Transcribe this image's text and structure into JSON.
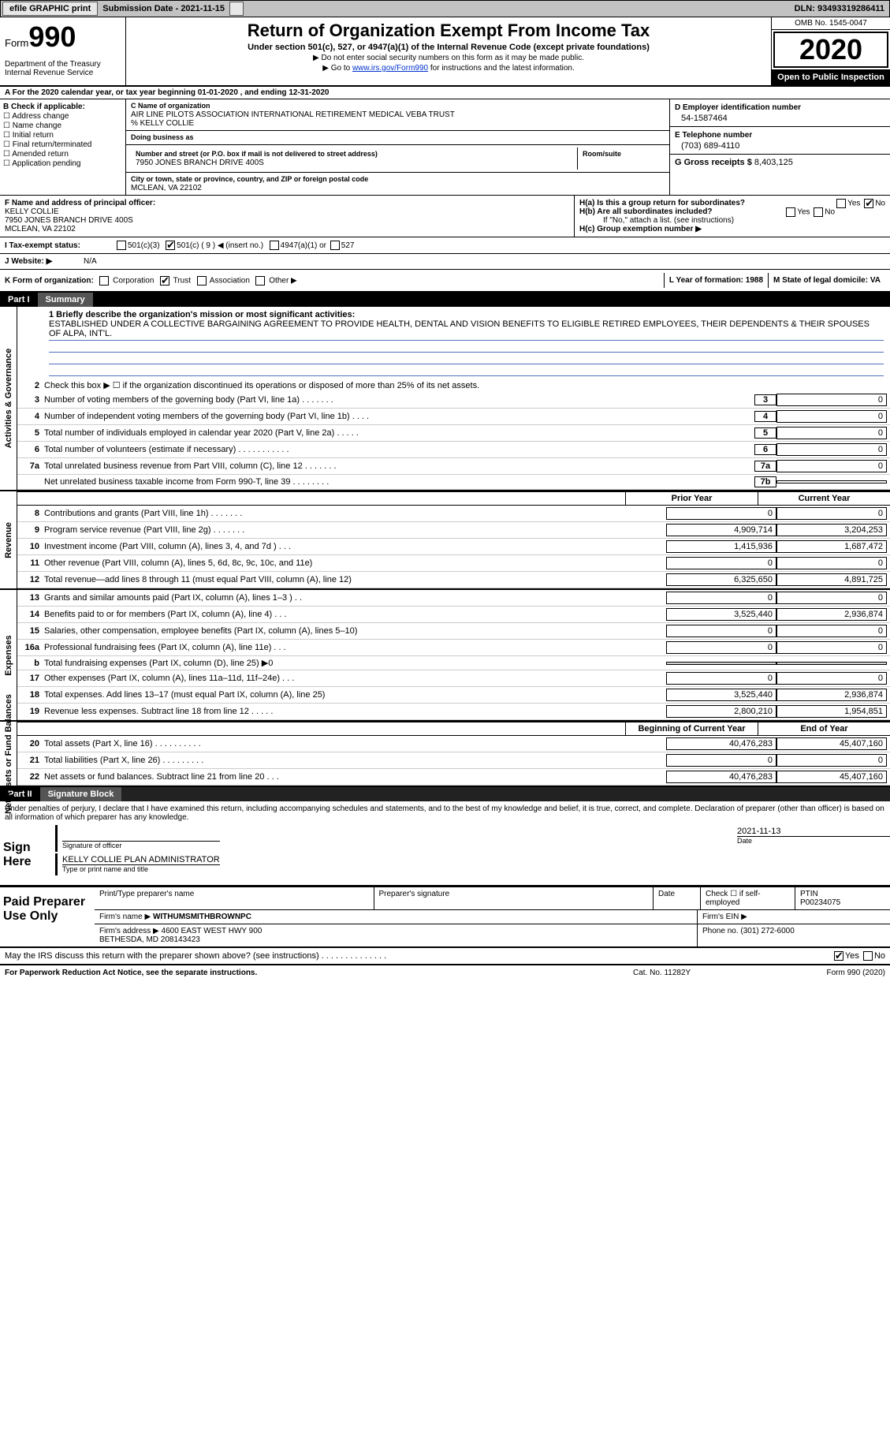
{
  "topbar": {
    "efile": "efile GRAPHIC print",
    "subdate_label": "Submission Date - 2021-11-15",
    "dln": "DLN: 93493319286411"
  },
  "header": {
    "form_word": "Form",
    "form_num": "990",
    "dept": "Department of the Treasury\nInternal Revenue Service",
    "title": "Return of Organization Exempt From Income Tax",
    "subtitle": "Under section 501(c), 527, or 4947(a)(1) of the Internal Revenue Code (except private foundations)",
    "note1": "▶ Do not enter social security numbers on this form as it may be made public.",
    "note2_pre": "▶ Go to ",
    "note2_link": "www.irs.gov/Form990",
    "note2_post": " for instructions and the latest information.",
    "omb": "OMB No. 1545-0047",
    "year": "2020",
    "open": "Open to Public Inspection"
  },
  "rowA": "A For the 2020 calendar year, or tax year beginning 01-01-2020    , and ending 12-31-2020",
  "sectionB": {
    "label": "B Check if applicable:",
    "opts": [
      "Address change",
      "Name change",
      "Initial return",
      "Final return/terminated",
      "Amended return",
      "Application pending"
    ]
  },
  "sectionC": {
    "name_lbl": "C Name of organization",
    "name": "AIR LINE PILOTS ASSOCIATION INTERNATIONAL RETIREMENT MEDICAL VEBA TRUST\n% KELLY COLLIE",
    "dba_lbl": "Doing business as",
    "street_lbl": "Number and street (or P.O. box if mail is not delivered to street address)",
    "street": "7950 JONES BRANCH DRIVE 400S",
    "room_lbl": "Room/suite",
    "city_lbl": "City or town, state or province, country, and ZIP or foreign postal code",
    "city": "MCLEAN, VA  22102"
  },
  "sectionD": {
    "lbl": "D Employer identification number",
    "val": "54-1587464"
  },
  "sectionE": {
    "lbl": "E Telephone number",
    "val": "(703) 689-4110"
  },
  "sectionG": {
    "lbl": "G Gross receipts $",
    "val": "8,403,125"
  },
  "sectionF": {
    "lbl": "F Name and address of principal officer:",
    "val": "KELLY COLLIE\n7950 JONES BRANCH DRIVE 400S\nMCLEAN, VA  22102"
  },
  "sectionH": {
    "a": "H(a)  Is this a group return for subordinates?",
    "b": "H(b)  Are all subordinates included?",
    "bnote": "If \"No,\" attach a list. (see instructions)",
    "c": "H(c)  Group exemption number ▶",
    "yes": "Yes",
    "no": "No"
  },
  "rowI": {
    "lbl": "I    Tax-exempt status:",
    "o1": "501(c)(3)",
    "o2": "501(c) ( 9 ) ◀ (insert no.)",
    "o3": "4947(a)(1) or",
    "o4": "527"
  },
  "rowJ": {
    "lbl": "J   Website: ▶",
    "val": "N/A"
  },
  "rowK": {
    "lbl": "K Form of organization:",
    "o1": "Corporation",
    "o2": "Trust",
    "o3": "Association",
    "o4": "Other ▶"
  },
  "rowL": "L Year of formation: 1988",
  "rowM": "M State of legal domicile: VA",
  "part1": {
    "pn": "Part I",
    "pt": "Summary"
  },
  "summary": {
    "side1": "Activities & Governance",
    "side2": "Revenue",
    "side3": "Expenses",
    "side4": "Net Assets or Fund Balances",
    "line1_lbl": "1   Briefly describe the organization's mission or most significant activities:",
    "line1_txt": "ESTABLISHED UNDER A COLLECTIVE BARGAINING AGREEMENT TO PROVIDE HEALTH, DENTAL AND VISION BENEFITS TO ELIGIBLE RETIRED EMPLOYEES, THEIR DEPENDENTS & THEIR SPOUSES OF ALPA, INT'L.",
    "line2": "Check this box ▶ ☐  if the organization discontinued its operations or disposed of more than 25% of its net assets.",
    "rows_gov": [
      {
        "n": "3",
        "t": "Number of voting members of the governing body (Part VI, line 1a)   .    .    .    .    .    .    .",
        "b": "3",
        "v": "0"
      },
      {
        "n": "4",
        "t": "Number of independent voting members of the governing body (Part VI, line 1b)    .    .    .    .",
        "b": "4",
        "v": "0"
      },
      {
        "n": "5",
        "t": "Total number of individuals employed in calendar year 2020 (Part V, line 2a)    .    .    .    .    .",
        "b": "5",
        "v": "0"
      },
      {
        "n": "6",
        "t": "Total number of volunteers (estimate if necessary)    .    .    .    .    .    .    .    .    .    .    .",
        "b": "6",
        "v": "0"
      },
      {
        "n": "7a",
        "t": "Total unrelated business revenue from Part VIII, column (C), line 12    .    .    .    .    .    .    .",
        "b": "7a",
        "v": "0"
      },
      {
        "n": "",
        "t": "Net unrelated business taxable income from Form 990-T, line 39    .    .    .    .    .    .    .    .",
        "b": "7b",
        "v": ""
      }
    ],
    "col_prior": "Prior Year",
    "col_curr": "Current Year",
    "rows_rev": [
      {
        "n": "8",
        "t": "Contributions and grants (Part VIII, line 1h)    .    .    .    .    .    .    .",
        "py": "0",
        "cy": "0"
      },
      {
        "n": "9",
        "t": "Program service revenue (Part VIII, line 2g)    .    .    .    .    .    .    .",
        "py": "4,909,714",
        "cy": "3,204,253"
      },
      {
        "n": "10",
        "t": "Investment income (Part VIII, column (A), lines 3, 4, and 7d )    .    .    .",
        "py": "1,415,936",
        "cy": "1,687,472"
      },
      {
        "n": "11",
        "t": "Other revenue (Part VIII, column (A), lines 5, 6d, 8c, 9c, 10c, and 11e)",
        "py": "0",
        "cy": "0"
      },
      {
        "n": "12",
        "t": "Total revenue—add lines 8 through 11 (must equal Part VIII, column (A), line 12)",
        "py": "6,325,650",
        "cy": "4,891,725"
      }
    ],
    "rows_exp": [
      {
        "n": "13",
        "t": "Grants and similar amounts paid (Part IX, column (A), lines 1–3 )    .    .",
        "py": "0",
        "cy": "0"
      },
      {
        "n": "14",
        "t": "Benefits paid to or for members (Part IX, column (A), line 4)    .    .    .",
        "py": "3,525,440",
        "cy": "2,936,874"
      },
      {
        "n": "15",
        "t": "Salaries, other compensation, employee benefits (Part IX, column (A), lines 5–10)",
        "py": "0",
        "cy": "0"
      },
      {
        "n": "16a",
        "t": "Professional fundraising fees (Part IX, column (A), line 11e)    .    .    .",
        "py": "0",
        "cy": "0"
      },
      {
        "n": "b",
        "t": "Total fundraising expenses (Part IX, column (D), line 25) ▶0",
        "py": "shade",
        "cy": "shade"
      },
      {
        "n": "17",
        "t": "Other expenses (Part IX, column (A), lines 11a–11d, 11f–24e)    .    .    .",
        "py": "0",
        "cy": "0"
      },
      {
        "n": "18",
        "t": "Total expenses. Add lines 13–17 (must equal Part IX, column (A), line 25)",
        "py": "3,525,440",
        "cy": "2,936,874"
      },
      {
        "n": "19",
        "t": "Revenue less expenses. Subtract line 18 from line 12    .    .    .    .    .",
        "py": "2,800,210",
        "cy": "1,954,851"
      }
    ],
    "col_boy": "Beginning of Current Year",
    "col_eoy": "End of Year",
    "rows_net": [
      {
        "n": "20",
        "t": "Total assets (Part X, line 16)    .    .    .    .    .    .    .    .    .    .",
        "py": "40,476,283",
        "cy": "45,407,160"
      },
      {
        "n": "21",
        "t": "Total liabilities (Part X, line 26)    .    .    .    .    .    .    .    .    .",
        "py": "0",
        "cy": "0"
      },
      {
        "n": "22",
        "t": "Net assets or fund balances. Subtract line 21 from line 20    .    .    .",
        "py": "40,476,283",
        "cy": "45,407,160"
      }
    ]
  },
  "part2": {
    "pn": "Part II",
    "pt": "Signature Block"
  },
  "sig": {
    "decl": "Under penalties of perjury, I declare that I have examined this return, including accompanying schedules and statements, and to the best of my knowledge and belief, it is true, correct, and complete. Declaration of preparer (other than officer) is based on all information of which preparer has any knowledge.",
    "here": "Sign Here",
    "sigoff": "Signature of officer",
    "date": "2021-11-13",
    "date_lbl": "Date",
    "name": "KELLY COLLIE PLAN ADMINISTRATOR",
    "name_lbl": "Type or print name and title"
  },
  "prep": {
    "label": "Paid Preparer Use Only",
    "h1": "Print/Type preparer's name",
    "h2": "Preparer's signature",
    "h3": "Date",
    "h4": "Check ☐ if self-employed",
    "h5_lbl": "PTIN",
    "h5": "P00234075",
    "firm_lbl": "Firm's name   ▶",
    "firm": "WITHUMSMITHBROWNPC",
    "ein_lbl": "Firm's EIN ▶",
    "addr_lbl": "Firm's address ▶",
    "addr": "4600 EAST WEST HWY 900\nBETHESDA, MD  208143423",
    "phone_lbl": "Phone no.",
    "phone": "(301) 272-6000",
    "discuss": "May the IRS discuss this return with the preparer shown above? (see instructions)    .    .    .    .    .    .    .    .    .    .    .    .    .    .",
    "yes": "Yes",
    "no": "No"
  },
  "footer": {
    "left": "For Paperwork Reduction Act Notice, see the separate instructions.",
    "mid": "Cat. No. 11282Y",
    "right": "Form 990 (2020)"
  }
}
